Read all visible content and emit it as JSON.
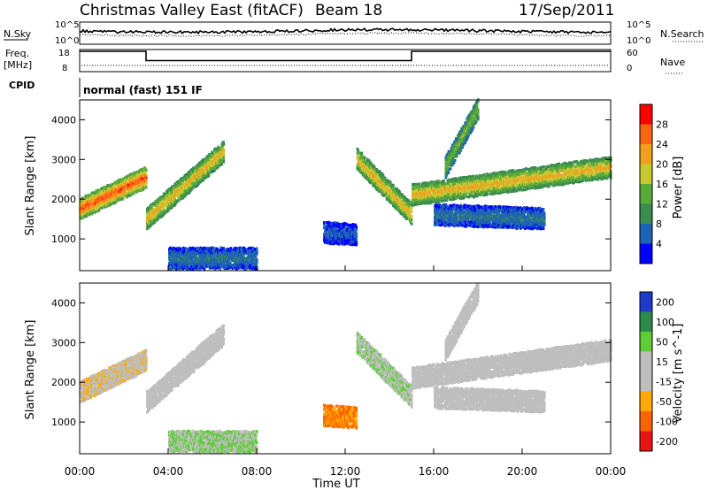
{
  "header": {
    "title": "Christmas Valley East (fitACF)",
    "beam": "Beam 18",
    "date": "17/Sep/2011"
  },
  "strip_labels": {
    "nsky": "N.Sky",
    "nsearch": "N.Search",
    "freq_line1": "Freq.",
    "freq_line2": "[MHz]",
    "nave": "Nave",
    "cpid": "CPID",
    "cpid_value": "normal (fast) 151 IF"
  },
  "strip_ticks": {
    "noise_left": [
      "10^5",
      "10^0"
    ],
    "noise_right": [
      "10^5",
      "10^0"
    ],
    "freq_left": [
      "18",
      "8"
    ],
    "freq_right": [
      "60",
      "0"
    ]
  },
  "axes": {
    "x_label": "Time UT",
    "x_ticks": [
      "00:00",
      "04:00",
      "08:00",
      "12:00",
      "16:00",
      "20:00",
      "00:00"
    ],
    "y_label": "Slant Range [km]",
    "y_ticks": [
      "1000",
      "2000",
      "3000",
      "4000"
    ]
  },
  "colorbars": {
    "power": {
      "label": "Power [dB]",
      "ticks": [
        "4",
        "8",
        "12",
        "16",
        "20",
        "24",
        "28"
      ],
      "colors": [
        "#0000ff",
        "#1e64b4",
        "#3c8c50",
        "#5aaa3c",
        "#c8c832",
        "#f0a020",
        "#ff6414",
        "#ff0000"
      ]
    },
    "velocity": {
      "label": "Velocity [m s^-1]",
      "ticks": [
        "200",
        "100",
        "50",
        "15",
        "-15",
        "-50",
        "-100",
        "-200"
      ],
      "colors": [
        "#1e3cc8",
        "#2d8a4a",
        "#5fcd37",
        "#bebebe",
        "#bebebe",
        "#ffaa00",
        "#ff6400",
        "#e61414"
      ]
    }
  },
  "chart_data": {
    "type": "heatmap",
    "title": "Christmas Valley East (fitACF)",
    "beam": 18,
    "date": "17/Sep/2011",
    "xlabel": "Time UT",
    "ylabel": "Slant Range [km]",
    "xlim_hours": [
      0,
      24
    ],
    "ylim_km": [
      200,
      4500
    ],
    "cpid": "normal (fast) 151 IF",
    "frequency_mhz": [
      {
        "start_h": 0,
        "end_h": 3,
        "value": 18
      },
      {
        "start_h": 3,
        "end_h": 15,
        "value": 13
      },
      {
        "start_h": 15,
        "end_h": 24,
        "value": 18
      }
    ],
    "backscatter_bands": [
      {
        "start_h": 0,
        "end_h": 3,
        "range_start_km": 1750,
        "range_end_km": 2550,
        "power_db": 28,
        "velocity_ms": -15
      },
      {
        "start_h": 3,
        "end_h": 6.5,
        "range_start_km": 1500,
        "range_end_km": 3200,
        "power_db": 22,
        "velocity_ms": 0
      },
      {
        "start_h": 12.5,
        "end_h": 15,
        "range_start_km": 3000,
        "range_end_km": 1600,
        "power_db": 22,
        "velocity_ms": 20
      },
      {
        "start_h": 15,
        "end_h": 24,
        "range_start_km": 2100,
        "range_end_km": 2800,
        "power_db": 22,
        "velocity_ms": 0
      },
      {
        "start_h": 16.5,
        "end_h": 18,
        "range_start_km": 2800,
        "range_end_km": 4300,
        "power_db": 16,
        "velocity_ms": 0
      },
      {
        "start_h": 16,
        "end_h": 21,
        "range_start_km": 1600,
        "range_end_km": 1500,
        "power_db": 8,
        "velocity_ms": 0
      },
      {
        "start_h": 11,
        "end_h": 12.5,
        "range_start_km": 1150,
        "range_end_km": 1100,
        "power_db": 6,
        "velocity_ms": -80
      },
      {
        "start_h": 4,
        "end_h": 8,
        "range_start_km": 500,
        "range_end_km": 500,
        "power_db": 8,
        "velocity_ms": 30
      }
    ],
    "colorscale_power_db": [
      4,
      8,
      12,
      16,
      20,
      24,
      28
    ],
    "colorscale_velocity_ms": [
      200,
      100,
      50,
      15,
      -15,
      -50,
      -100,
      -200
    ]
  }
}
